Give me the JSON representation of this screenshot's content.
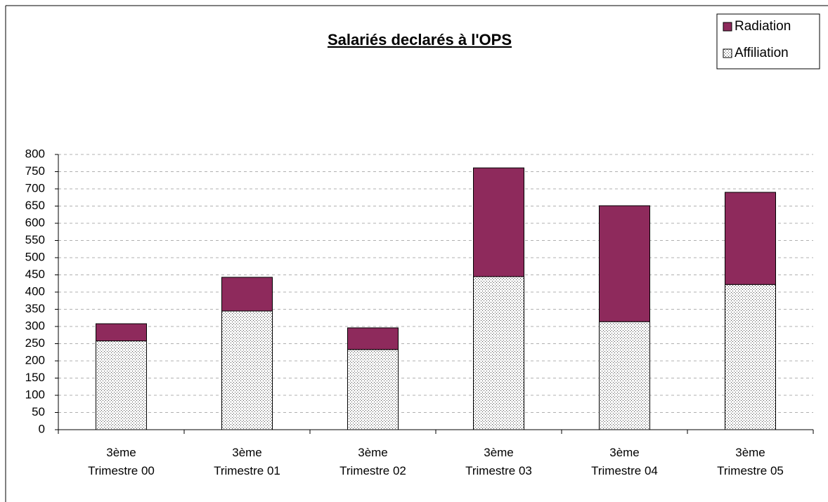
{
  "chart_data": {
    "type": "stacked_bar",
    "title": "Salariés declarés à l'OPS",
    "categories": [
      "3ème Trimestre 00",
      "3ème Trimestre 01",
      "3ème Trimestre 02",
      "3ème Trimestre 03",
      "3ème Trimestre 04",
      "3ème Trimestre 05"
    ],
    "series": [
      {
        "name": "Affiliation",
        "color": "#ffffff",
        "values": [
          258,
          345,
          233,
          445,
          314,
          422
        ]
      },
      {
        "name": "Radiation",
        "color": "#8e2a5c",
        "values": [
          50,
          98,
          63,
          316,
          337,
          268
        ]
      }
    ],
    "ylim": [
      0,
      800
    ],
    "yticks": [
      0,
      50,
      100,
      150,
      200,
      250,
      300,
      350,
      400,
      450,
      500,
      550,
      600,
      650,
      700,
      750,
      800
    ],
    "grid": true,
    "legend": "top-right"
  }
}
